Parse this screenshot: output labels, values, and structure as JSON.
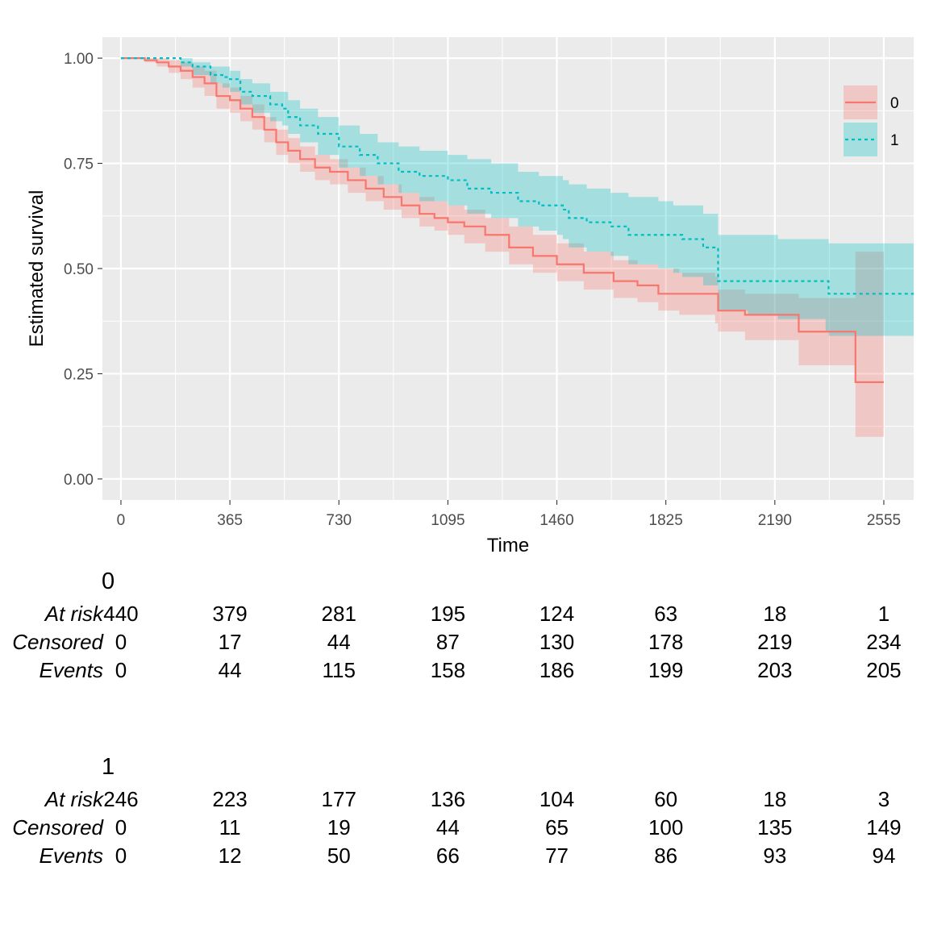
{
  "chart_data": {
    "type": "line",
    "subtype": "kaplan-meier",
    "xlabel": "Time",
    "ylabel": "Estimated survival",
    "xlim": [
      -62,
      2655
    ],
    "ylim": [
      -0.05,
      1.05
    ],
    "x_ticks": [
      0,
      365,
      730,
      1095,
      1460,
      1825,
      2190,
      2555
    ],
    "x_tick_labels": [
      "0",
      "365",
      "730",
      "1095",
      "1460",
      "1825",
      "2190",
      "2555"
    ],
    "y_ticks": [
      0,
      0.25,
      0.5,
      0.75,
      1
    ],
    "y_tick_labels": [
      "0.00",
      "0.25",
      "0.50",
      "0.75",
      "1.00"
    ],
    "grid": true,
    "legend_position": "top-right",
    "series": [
      {
        "name": "0",
        "color": "#f8766d",
        "linetype": "solid",
        "points": [
          [
            0,
            1.0
          ],
          [
            40,
            1.0
          ],
          [
            80,
            0.995
          ],
          [
            120,
            0.99
          ],
          [
            160,
            0.98
          ],
          [
            200,
            0.97
          ],
          [
            240,
            0.955
          ],
          [
            280,
            0.94
          ],
          [
            320,
            0.91
          ],
          [
            365,
            0.9
          ],
          [
            400,
            0.88
          ],
          [
            440,
            0.86
          ],
          [
            480,
            0.83
          ],
          [
            520,
            0.8
          ],
          [
            560,
            0.78
          ],
          [
            600,
            0.76
          ],
          [
            650,
            0.74
          ],
          [
            700,
            0.73
          ],
          [
            760,
            0.71
          ],
          [
            820,
            0.69
          ],
          [
            880,
            0.67
          ],
          [
            940,
            0.65
          ],
          [
            1000,
            0.63
          ],
          [
            1050,
            0.62
          ],
          [
            1095,
            0.61
          ],
          [
            1150,
            0.6
          ],
          [
            1220,
            0.58
          ],
          [
            1300,
            0.55
          ],
          [
            1380,
            0.53
          ],
          [
            1460,
            0.51
          ],
          [
            1550,
            0.49
          ],
          [
            1650,
            0.47
          ],
          [
            1730,
            0.46
          ],
          [
            1800,
            0.44
          ],
          [
            1870,
            0.44
          ],
          [
            1990,
            0.44
          ],
          [
            2000,
            0.4
          ],
          [
            2090,
            0.39
          ],
          [
            2190,
            0.39
          ],
          [
            2270,
            0.35
          ],
          [
            2450,
            0.35
          ],
          [
            2460,
            0.23
          ],
          [
            2555,
            0.23
          ]
        ],
        "ci_upper": [
          [
            0,
            1.0
          ],
          [
            40,
            1.0
          ],
          [
            80,
            1.0
          ],
          [
            120,
            1.0
          ],
          [
            160,
            0.995
          ],
          [
            200,
            0.99
          ],
          [
            240,
            0.98
          ],
          [
            280,
            0.97
          ],
          [
            320,
            0.94
          ],
          [
            365,
            0.93
          ],
          [
            400,
            0.91
          ],
          [
            440,
            0.89
          ],
          [
            480,
            0.86
          ],
          [
            520,
            0.83
          ],
          [
            560,
            0.81
          ],
          [
            600,
            0.79
          ],
          [
            650,
            0.77
          ],
          [
            700,
            0.76
          ],
          [
            760,
            0.74
          ],
          [
            820,
            0.72
          ],
          [
            880,
            0.7
          ],
          [
            940,
            0.68
          ],
          [
            1000,
            0.67
          ],
          [
            1050,
            0.66
          ],
          [
            1095,
            0.65
          ],
          [
            1150,
            0.64
          ],
          [
            1220,
            0.62
          ],
          [
            1300,
            0.6
          ],
          [
            1380,
            0.58
          ],
          [
            1460,
            0.56
          ],
          [
            1550,
            0.54
          ],
          [
            1650,
            0.52
          ],
          [
            1730,
            0.51
          ],
          [
            1800,
            0.5
          ],
          [
            1870,
            0.49
          ],
          [
            1990,
            0.48
          ],
          [
            2000,
            0.45
          ],
          [
            2090,
            0.44
          ],
          [
            2190,
            0.44
          ],
          [
            2270,
            0.43
          ],
          [
            2450,
            0.43
          ],
          [
            2460,
            0.54
          ],
          [
            2555,
            0.54
          ]
        ],
        "ci_lower": [
          [
            0,
            1.0
          ],
          [
            40,
            1.0
          ],
          [
            80,
            0.99
          ],
          [
            120,
            0.98
          ],
          [
            160,
            0.965
          ],
          [
            200,
            0.95
          ],
          [
            240,
            0.93
          ],
          [
            280,
            0.91
          ],
          [
            320,
            0.88
          ],
          [
            365,
            0.87
          ],
          [
            400,
            0.85
          ],
          [
            440,
            0.83
          ],
          [
            480,
            0.8
          ],
          [
            520,
            0.77
          ],
          [
            560,
            0.75
          ],
          [
            600,
            0.73
          ],
          [
            650,
            0.71
          ],
          [
            700,
            0.7
          ],
          [
            760,
            0.68
          ],
          [
            820,
            0.66
          ],
          [
            880,
            0.64
          ],
          [
            940,
            0.62
          ],
          [
            1000,
            0.6
          ],
          [
            1050,
            0.59
          ],
          [
            1095,
            0.58
          ],
          [
            1150,
            0.56
          ],
          [
            1220,
            0.54
          ],
          [
            1300,
            0.51
          ],
          [
            1380,
            0.49
          ],
          [
            1460,
            0.47
          ],
          [
            1550,
            0.45
          ],
          [
            1650,
            0.43
          ],
          [
            1730,
            0.42
          ],
          [
            1800,
            0.4
          ],
          [
            1870,
            0.39
          ],
          [
            1990,
            0.37
          ],
          [
            2000,
            0.35
          ],
          [
            2090,
            0.33
          ],
          [
            2190,
            0.33
          ],
          [
            2270,
            0.27
          ],
          [
            2450,
            0.27
          ],
          [
            2460,
            0.1
          ],
          [
            2555,
            0.1
          ]
        ]
      },
      {
        "name": "1",
        "color": "#00bfc4",
        "linetype": "dashed",
        "points": [
          [
            0,
            1.0
          ],
          [
            100,
            1.0
          ],
          [
            170,
            1.0
          ],
          [
            200,
            0.99
          ],
          [
            240,
            0.98
          ],
          [
            300,
            0.96
          ],
          [
            340,
            0.955
          ],
          [
            365,
            0.95
          ],
          [
            400,
            0.92
          ],
          [
            440,
            0.91
          ],
          [
            500,
            0.89
          ],
          [
            540,
            0.88
          ],
          [
            560,
            0.86
          ],
          [
            600,
            0.84
          ],
          [
            660,
            0.82
          ],
          [
            730,
            0.79
          ],
          [
            800,
            0.77
          ],
          [
            860,
            0.75
          ],
          [
            930,
            0.73
          ],
          [
            1000,
            0.72
          ],
          [
            1095,
            0.71
          ],
          [
            1160,
            0.69
          ],
          [
            1240,
            0.68
          ],
          [
            1330,
            0.66
          ],
          [
            1400,
            0.65
          ],
          [
            1460,
            0.65
          ],
          [
            1480,
            0.64
          ],
          [
            1500,
            0.62
          ],
          [
            1560,
            0.61
          ],
          [
            1640,
            0.6
          ],
          [
            1700,
            0.58
          ],
          [
            1800,
            0.58
          ],
          [
            1850,
            0.58
          ],
          [
            1880,
            0.57
          ],
          [
            1950,
            0.55
          ],
          [
            2000,
            0.47
          ],
          [
            2100,
            0.47
          ],
          [
            2200,
            0.47
          ],
          [
            2360,
            0.47
          ],
          [
            2370,
            0.44
          ],
          [
            2655,
            0.44
          ]
        ],
        "ci_upper": [
          [
            0,
            1.0
          ],
          [
            100,
            1.0
          ],
          [
            170,
            1.0
          ],
          [
            200,
            1.0
          ],
          [
            240,
            0.99
          ],
          [
            300,
            0.98
          ],
          [
            340,
            0.98
          ],
          [
            365,
            0.97
          ],
          [
            400,
            0.95
          ],
          [
            440,
            0.94
          ],
          [
            500,
            0.92
          ],
          [
            540,
            0.92
          ],
          [
            560,
            0.9
          ],
          [
            600,
            0.88
          ],
          [
            660,
            0.86
          ],
          [
            730,
            0.84
          ],
          [
            800,
            0.82
          ],
          [
            860,
            0.8
          ],
          [
            930,
            0.79
          ],
          [
            1000,
            0.78
          ],
          [
            1095,
            0.77
          ],
          [
            1160,
            0.76
          ],
          [
            1240,
            0.75
          ],
          [
            1330,
            0.73
          ],
          [
            1400,
            0.72
          ],
          [
            1460,
            0.72
          ],
          [
            1480,
            0.71
          ],
          [
            1500,
            0.7
          ],
          [
            1560,
            0.69
          ],
          [
            1640,
            0.68
          ],
          [
            1700,
            0.67
          ],
          [
            1800,
            0.66
          ],
          [
            1850,
            0.65
          ],
          [
            1880,
            0.65
          ],
          [
            1950,
            0.63
          ],
          [
            2000,
            0.58
          ],
          [
            2100,
            0.58
          ],
          [
            2200,
            0.57
          ],
          [
            2360,
            0.57
          ],
          [
            2370,
            0.56
          ],
          [
            2655,
            0.56
          ]
        ],
        "ci_lower": [
          [
            0,
            1.0
          ],
          [
            100,
            1.0
          ],
          [
            170,
            1.0
          ],
          [
            200,
            0.98
          ],
          [
            240,
            0.96
          ],
          [
            300,
            0.94
          ],
          [
            340,
            0.93
          ],
          [
            365,
            0.92
          ],
          [
            400,
            0.89
          ],
          [
            440,
            0.87
          ],
          [
            500,
            0.85
          ],
          [
            540,
            0.84
          ],
          [
            560,
            0.82
          ],
          [
            600,
            0.8
          ],
          [
            660,
            0.77
          ],
          [
            730,
            0.74
          ],
          [
            800,
            0.72
          ],
          [
            860,
            0.7
          ],
          [
            930,
            0.68
          ],
          [
            1000,
            0.66
          ],
          [
            1095,
            0.65
          ],
          [
            1160,
            0.63
          ],
          [
            1240,
            0.62
          ],
          [
            1330,
            0.6
          ],
          [
            1400,
            0.59
          ],
          [
            1460,
            0.58
          ],
          [
            1480,
            0.57
          ],
          [
            1500,
            0.55
          ],
          [
            1560,
            0.54
          ],
          [
            1640,
            0.53
          ],
          [
            1700,
            0.51
          ],
          [
            1800,
            0.5
          ],
          [
            1850,
            0.49
          ],
          [
            1880,
            0.48
          ],
          [
            1950,
            0.46
          ],
          [
            2000,
            0.4
          ],
          [
            2100,
            0.39
          ],
          [
            2200,
            0.38
          ],
          [
            2360,
            0.35
          ],
          [
            2370,
            0.34
          ],
          [
            2655,
            0.34
          ]
        ]
      }
    ]
  },
  "risk_table": {
    "times": [
      0,
      365,
      730,
      1095,
      1460,
      1825,
      2190,
      2555
    ],
    "row_labels": [
      "At risk",
      "Censored",
      "Events"
    ],
    "strata": [
      {
        "name": "0",
        "at_risk": [
          "440",
          "379",
          "281",
          "195",
          "124",
          "63",
          "18",
          "1"
        ],
        "censored": [
          "0",
          "17",
          "44",
          "87",
          "130",
          "178",
          "219",
          "234"
        ],
        "events": [
          "0",
          "44",
          "115",
          "158",
          "186",
          "199",
          "203",
          "205"
        ]
      },
      {
        "name": "1",
        "at_risk": [
          "246",
          "223",
          "177",
          "136",
          "104",
          "60",
          "18",
          "3"
        ],
        "censored": [
          "0",
          "11",
          "19",
          "44",
          "65",
          "100",
          "135",
          "149"
        ],
        "events": [
          "0",
          "12",
          "50",
          "66",
          "77",
          "86",
          "93",
          "94"
        ]
      }
    ]
  }
}
